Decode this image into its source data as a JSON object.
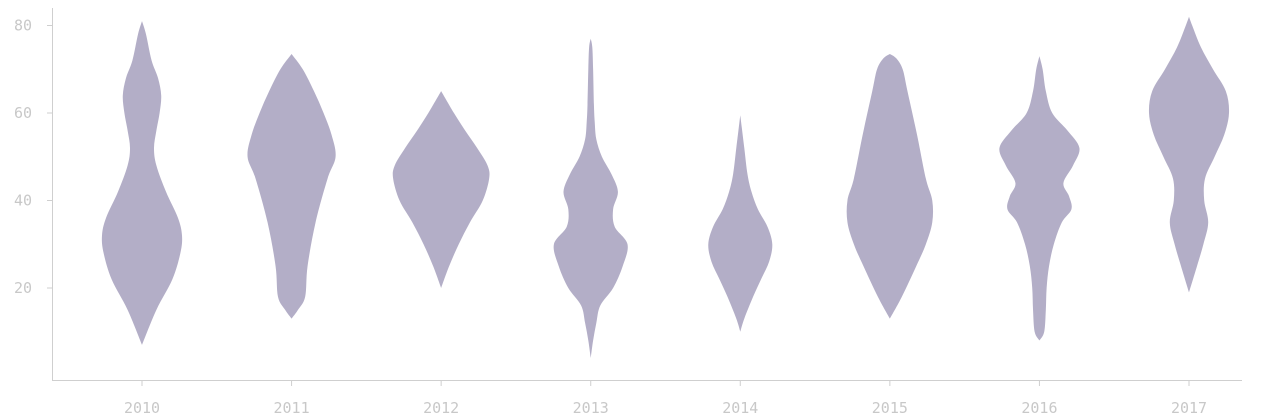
{
  "chart_data": {
    "type": "violin",
    "title": "",
    "xlabel": "",
    "ylabel": "",
    "categories": [
      "2010",
      "2011",
      "2012",
      "2013",
      "2014",
      "2015",
      "2016",
      "2017"
    ],
    "ylim": [
      0,
      82
    ],
    "yticks": [
      20,
      40,
      60,
      80
    ],
    "grid": false,
    "color": "#b3aec7",
    "axis_color": "#cfcfcf",
    "tick_label_color": "#c8c8c8",
    "violins": [
      {
        "category": "2010",
        "density": [
          [
            7,
            0
          ],
          [
            15,
            0.18
          ],
          [
            22,
            0.38
          ],
          [
            28,
            0.48
          ],
          [
            32,
            0.5
          ],
          [
            36,
            0.45
          ],
          [
            42,
            0.3
          ],
          [
            48,
            0.18
          ],
          [
            52,
            0.15
          ],
          [
            56,
            0.18
          ],
          [
            60,
            0.22
          ],
          [
            64,
            0.24
          ],
          [
            68,
            0.2
          ],
          [
            72,
            0.12
          ],
          [
            78,
            0.05
          ],
          [
            81,
            0
          ]
        ]
      },
      {
        "category": "2011",
        "density": [
          [
            13,
            0
          ],
          [
            15,
            0.08
          ],
          [
            18,
            0.17
          ],
          [
            25,
            0.2
          ],
          [
            35,
            0.3
          ],
          [
            45,
            0.45
          ],
          [
            50,
            0.55
          ],
          [
            55,
            0.5
          ],
          [
            60,
            0.4
          ],
          [
            65,
            0.28
          ],
          [
            70,
            0.14
          ],
          [
            73.5,
            0
          ]
        ]
      },
      {
        "category": "2012",
        "density": [
          [
            20,
            0
          ],
          [
            25,
            0.1
          ],
          [
            30,
            0.22
          ],
          [
            35,
            0.36
          ],
          [
            40,
            0.52
          ],
          [
            45,
            0.6
          ],
          [
            48,
            0.58
          ],
          [
            52,
            0.45
          ],
          [
            56,
            0.3
          ],
          [
            60,
            0.16
          ],
          [
            65,
            0
          ]
        ]
      },
      {
        "category": "2013",
        "density": [
          [
            4,
            0
          ],
          [
            8,
            0.03
          ],
          [
            12,
            0.07
          ],
          [
            16,
            0.12
          ],
          [
            20,
            0.28
          ],
          [
            25,
            0.4
          ],
          [
            30,
            0.46
          ],
          [
            34,
            0.3
          ],
          [
            38,
            0.28
          ],
          [
            42,
            0.34
          ],
          [
            46,
            0.26
          ],
          [
            50,
            0.14
          ],
          [
            54,
            0.07
          ],
          [
            58,
            0.05
          ],
          [
            62,
            0.04
          ],
          [
            70,
            0.03
          ],
          [
            75,
            0.02
          ],
          [
            77,
            0
          ]
        ]
      },
      {
        "category": "2014",
        "density": [
          [
            10,
            0
          ],
          [
            13,
            0.05
          ],
          [
            18,
            0.16
          ],
          [
            22,
            0.26
          ],
          [
            26,
            0.36
          ],
          [
            30,
            0.4
          ],
          [
            34,
            0.34
          ],
          [
            38,
            0.22
          ],
          [
            42,
            0.14
          ],
          [
            46,
            0.09
          ],
          [
            52,
            0.05
          ],
          [
            59.5,
            0
          ]
        ]
      },
      {
        "category": "2015",
        "density": [
          [
            13,
            0
          ],
          [
            18,
            0.15
          ],
          [
            25,
            0.33
          ],
          [
            30,
            0.45
          ],
          [
            35,
            0.53
          ],
          [
            40,
            0.53
          ],
          [
            45,
            0.45
          ],
          [
            55,
            0.34
          ],
          [
            65,
            0.22
          ],
          [
            70,
            0.16
          ],
          [
            72.5,
            0.08
          ],
          [
            73.5,
            0
          ]
        ]
      },
      {
        "category": "2016",
        "density": [
          [
            8,
            0
          ],
          [
            10,
            0.06
          ],
          [
            15,
            0.08
          ],
          [
            20,
            0.09
          ],
          [
            25,
            0.12
          ],
          [
            30,
            0.18
          ],
          [
            35,
            0.28
          ],
          [
            38,
            0.4
          ],
          [
            41,
            0.37
          ],
          [
            44,
            0.3
          ],
          [
            48,
            0.42
          ],
          [
            52,
            0.5
          ],
          [
            56,
            0.35
          ],
          [
            60,
            0.16
          ],
          [
            65,
            0.08
          ],
          [
            70,
            0.04
          ],
          [
            73,
            0
          ]
        ]
      },
      {
        "category": "2017",
        "density": [
          [
            19,
            0
          ],
          [
            25,
            0.1
          ],
          [
            30,
            0.18
          ],
          [
            35,
            0.24
          ],
          [
            40,
            0.19
          ],
          [
            45,
            0.2
          ],
          [
            50,
            0.32
          ],
          [
            55,
            0.44
          ],
          [
            60,
            0.5
          ],
          [
            65,
            0.46
          ],
          [
            70,
            0.3
          ],
          [
            75,
            0.15
          ],
          [
            80,
            0.04
          ],
          [
            82,
            0
          ]
        ]
      }
    ]
  }
}
